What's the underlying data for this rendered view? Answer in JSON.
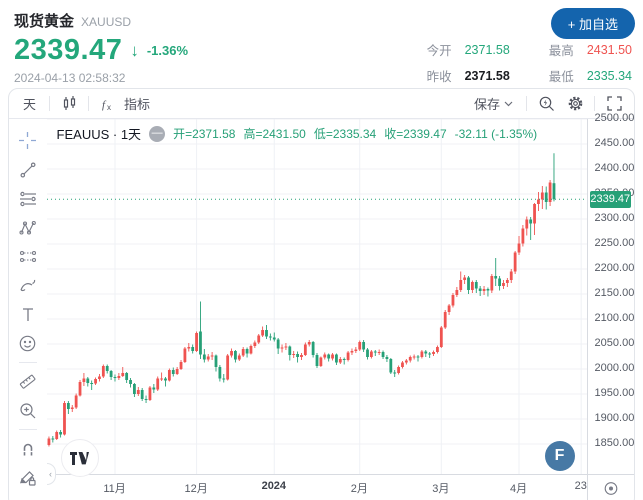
{
  "header": {
    "symbol_name": "现货黄金",
    "symbol_code": "XAUUSD",
    "price": "2339.47",
    "down_arrow": "↓",
    "change_percent": "-1.36%",
    "timestamp": "2024-04-13 02:58:32",
    "add_watchlist_label": "+ 加自选",
    "stats": [
      {
        "label": "今开",
        "value": "2371.58"
      },
      {
        "label": "最高",
        "value": "2431.50"
      },
      {
        "label": "昨收",
        "value": "2371.58"
      },
      {
        "label": "最低",
        "value": "2335.34"
      }
    ]
  },
  "toolbar": {
    "interval_label": "天",
    "indicators_label": "指标",
    "save_label": "保存"
  },
  "legend": {
    "series_title": "FEAUUS · 1天",
    "collapse_glyph": "—",
    "open": "开=2371.58",
    "high": "高=2431.50",
    "low": "低=2335.34",
    "close": "收=2339.47",
    "change": "-32.11 (-1.35%)"
  },
  "watermarks": {
    "f_logo": "F"
  },
  "colors": {
    "up": "#ef5350",
    "down": "#26a077",
    "grid": "#f0f2f6",
    "accent_blue": "#1464ad"
  },
  "chart_data": {
    "type": "candlestick",
    "title": "FEAUUS · 1天 (XAUUSD 日线)",
    "ylim": [
      1790,
      2500
    ],
    "y_ticks": [
      2500,
      2450,
      2400,
      2350,
      2300,
      2250,
      2200,
      2150,
      2100,
      2050,
      2000,
      1950,
      1900,
      1850
    ],
    "visible_slots": 139,
    "last_price": 2339.47,
    "last_price_label": "2339.47",
    "up_color": "#ef5350",
    "down_color": "#26a077",
    "x_labels": [
      {
        "label": "11月",
        "index": 17
      },
      {
        "label": "12月",
        "index": 38
      },
      {
        "label": "2024",
        "index": 58,
        "bold": true
      },
      {
        "label": "2月",
        "index": 80
      },
      {
        "label": "3月",
        "index": 101
      },
      {
        "label": "4月",
        "index": 121
      },
      {
        "label": "23",
        "index": 137
      }
    ],
    "candles": [
      [
        1848,
        1865,
        1845,
        1861
      ],
      [
        1861,
        1866,
        1853,
        1860
      ],
      [
        1860,
        1877,
        1858,
        1874
      ],
      [
        1874,
        1878,
        1863,
        1869
      ],
      [
        1869,
        1936,
        1867,
        1932
      ],
      [
        1932,
        1936,
        1910,
        1920
      ],
      [
        1920,
        1928,
        1914,
        1923
      ],
      [
        1923,
        1951,
        1920,
        1947
      ],
      [
        1947,
        1978,
        1945,
        1974
      ],
      [
        1974,
        1992,
        1966,
        1981
      ],
      [
        1981,
        1984,
        1965,
        1972
      ],
      [
        1972,
        1977,
        1958,
        1971
      ],
      [
        1971,
        1983,
        1968,
        1980
      ],
      [
        1980,
        1990,
        1975,
        1985
      ],
      [
        1985,
        2009,
        1982,
        2006
      ],
      [
        2006,
        2009,
        1991,
        1996
      ],
      [
        1996,
        1998,
        1978,
        1984
      ],
      [
        1984,
        1989,
        1975,
        1982
      ],
      [
        1982,
        1992,
        1978,
        1986
      ],
      [
        1986,
        2004,
        1984,
        1992
      ],
      [
        1992,
        1994,
        1972,
        1978
      ],
      [
        1978,
        1982,
        1963,
        1970
      ],
      [
        1970,
        1972,
        1944,
        1950
      ],
      [
        1950,
        1964,
        1946,
        1958
      ],
      [
        1958,
        1962,
        1936,
        1940
      ],
      [
        1940,
        1947,
        1932,
        1938
      ],
      [
        1938,
        1966,
        1936,
        1963
      ],
      [
        1963,
        1970,
        1952,
        1959
      ],
      [
        1959,
        1985,
        1956,
        1981
      ],
      [
        1981,
        1993,
        1976,
        1981
      ],
      [
        1981,
        1984,
        1965,
        1977
      ],
      [
        1977,
        2001,
        1975,
        1998
      ],
      [
        1998,
        2003,
        1985,
        1990
      ],
      [
        1990,
        2004,
        1988,
        2000
      ],
      [
        2000,
        2018,
        1998,
        2014
      ],
      [
        2014,
        2044,
        2012,
        2041
      ],
      [
        2041,
        2052,
        2035,
        2044
      ],
      [
        2044,
        2049,
        2031,
        2036
      ],
      [
        2036,
        2075,
        2034,
        2072
      ],
      [
        2075,
        2135,
        2020,
        2029
      ],
      [
        2029,
        2040,
        2013,
        2019
      ],
      [
        2019,
        2030,
        2015,
        2025
      ],
      [
        2025,
        2034,
        2018,
        2027
      ],
      [
        2027,
        2029,
        1995,
        2004
      ],
      [
        2004,
        2008,
        1975,
        1981
      ],
      [
        1981,
        1990,
        1973,
        1979
      ],
      [
        1979,
        2030,
        1977,
        2027
      ],
      [
        2027,
        2041,
        2023,
        2036
      ],
      [
        2036,
        2038,
        2013,
        2019
      ],
      [
        2019,
        2031,
        2016,
        2027
      ],
      [
        2027,
        2044,
        2024,
        2040
      ],
      [
        2040,
        2043,
        2023,
        2031
      ],
      [
        2031,
        2049,
        2029,
        2046
      ],
      [
        2046,
        2057,
        2042,
        2053
      ],
      [
        2053,
        2070,
        2050,
        2067
      ],
      [
        2067,
        2085,
        2064,
        2078
      ],
      [
        2078,
        2088,
        2060,
        2065
      ],
      [
        2065,
        2071,
        2057,
        2063
      ],
      [
        2063,
        2073,
        2055,
        2059
      ],
      [
        2059,
        2062,
        2030,
        2041
      ],
      [
        2041,
        2049,
        2033,
        2043
      ],
      [
        2043,
        2052,
        2038,
        2045
      ],
      [
        2045,
        2047,
        2017,
        2028
      ],
      [
        2028,
        2036,
        2022,
        2030
      ],
      [
        2030,
        2035,
        2013,
        2024
      ],
      [
        2024,
        2032,
        2018,
        2028
      ],
      [
        2028,
        2053,
        2026,
        2049
      ],
      [
        2049,
        2058,
        2045,
        2054
      ],
      [
        2054,
        2056,
        2023,
        2028
      ],
      [
        2028,
        2032,
        2002,
        2006
      ],
      [
        2006,
        2025,
        2004,
        2023
      ],
      [
        2023,
        2033,
        2019,
        2029
      ],
      [
        2029,
        2031,
        2015,
        2021
      ],
      [
        2021,
        2032,
        2017,
        2029
      ],
      [
        2029,
        2031,
        2008,
        2013
      ],
      [
        2013,
        2024,
        2010,
        2020
      ],
      [
        2020,
        2023,
        2009,
        2018
      ],
      [
        2018,
        2036,
        2015,
        2033
      ],
      [
        2033,
        2041,
        2028,
        2036
      ],
      [
        2036,
        2044,
        2032,
        2039
      ],
      [
        2039,
        2057,
        2036,
        2054
      ],
      [
        2054,
        2058,
        2034,
        2039
      ],
      [
        2039,
        2042,
        2019,
        2024
      ],
      [
        2024,
        2038,
        2021,
        2035
      ],
      [
        2035,
        2038,
        2026,
        2034
      ],
      [
        2034,
        2039,
        2028,
        2034
      ],
      [
        2034,
        2037,
        2020,
        2024
      ],
      [
        2024,
        2028,
        2014,
        2020
      ],
      [
        2020,
        2022,
        1990,
        1993
      ],
      [
        1993,
        1998,
        1984,
        1992
      ],
      [
        1992,
        2007,
        1989,
        2004
      ],
      [
        2004,
        2016,
        2001,
        2013
      ],
      [
        2013,
        2020,
        2009,
        2017
      ],
      [
        2017,
        2027,
        2013,
        2024
      ],
      [
        2024,
        2029,
        2019,
        2025
      ],
      [
        2025,
        2028,
        2015,
        2024
      ],
      [
        2024,
        2038,
        2021,
        2035
      ],
      [
        2035,
        2038,
        2024,
        2031
      ],
      [
        2031,
        2034,
        2022,
        2030
      ],
      [
        2030,
        2037,
        2026,
        2034
      ],
      [
        2034,
        2047,
        2031,
        2044
      ],
      [
        2044,
        2086,
        2042,
        2083
      ],
      [
        2083,
        2118,
        2080,
        2114
      ],
      [
        2114,
        2130,
        2108,
        2127
      ],
      [
        2127,
        2152,
        2123,
        2148
      ],
      [
        2148,
        2164,
        2144,
        2158
      ],
      [
        2158,
        2195,
        2154,
        2178
      ],
      [
        2178,
        2188,
        2170,
        2183
      ],
      [
        2183,
        2186,
        2150,
        2158
      ],
      [
        2158,
        2177,
        2152,
        2174
      ],
      [
        2174,
        2178,
        2152,
        2161
      ],
      [
        2161,
        2166,
        2146,
        2156
      ],
      [
        2156,
        2166,
        2148,
        2160
      ],
      [
        2160,
        2163,
        2145,
        2157
      ],
      [
        2157,
        2190,
        2152,
        2186
      ],
      [
        2186,
        2222,
        2166,
        2181
      ],
      [
        2181,
        2186,
        2157,
        2166
      ],
      [
        2166,
        2178,
        2160,
        2172
      ],
      [
        2172,
        2182,
        2164,
        2178
      ],
      [
        2178,
        2200,
        2172,
        2195
      ],
      [
        2195,
        2236,
        2190,
        2233
      ],
      [
        2233,
        2266,
        2228,
        2251
      ],
      [
        2251,
        2288,
        2245,
        2281
      ],
      [
        2281,
        2305,
        2267,
        2299
      ],
      [
        2299,
        2304,
        2258,
        2291
      ],
      [
        2291,
        2332,
        2268,
        2330
      ],
      [
        2330,
        2354,
        2316,
        2339
      ],
      [
        2339,
        2366,
        2320,
        2353
      ],
      [
        2353,
        2365,
        2319,
        2334
      ],
      [
        2334,
        2378,
        2326,
        2373
      ],
      [
        2371.58,
        2431.5,
        2335.34,
        2339.47
      ]
    ]
  }
}
